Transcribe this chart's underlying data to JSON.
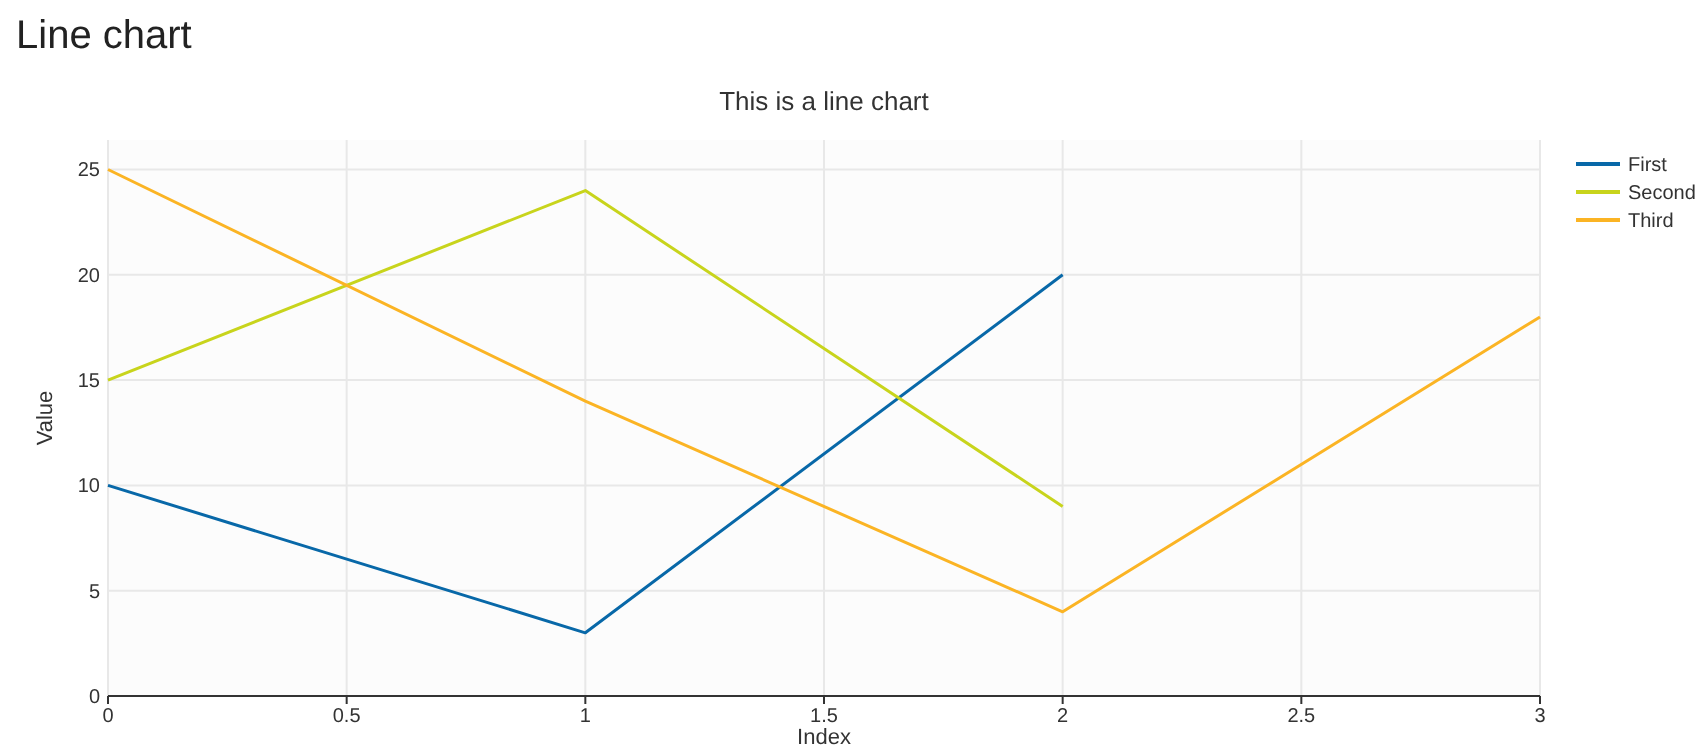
{
  "chart_data": {
    "type": "line",
    "title": "Line chart",
    "subtitle": "This is a line chart",
    "xlabel": "Index",
    "ylabel": "Value",
    "xlim": [
      0,
      3
    ],
    "xticks": [
      0,
      0.5,
      1,
      1.5,
      2,
      2.5,
      3
    ],
    "ylim": [
      0,
      26.4
    ],
    "yticks": [
      0,
      5,
      10,
      15,
      20,
      25
    ],
    "grid": true,
    "legend": "top right",
    "marker": "none",
    "line_style": "solid",
    "series": [
      {
        "name": "First",
        "color": "#0868a8",
        "x": [
          0,
          1,
          2
        ],
        "values": [
          10,
          3,
          20
        ]
      },
      {
        "name": "Second",
        "color": "#c8d41c",
        "x": [
          0,
          1,
          2
        ],
        "values": [
          15,
          24,
          9
        ]
      },
      {
        "name": "Third",
        "color": "#fbb424",
        "x": [
          0,
          1,
          2,
          3
        ],
        "values": [
          25,
          14,
          4,
          18
        ]
      }
    ]
  }
}
